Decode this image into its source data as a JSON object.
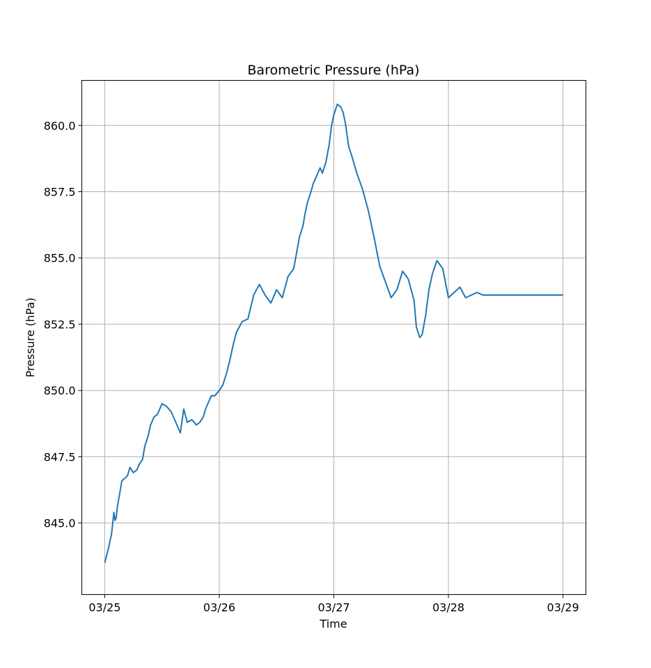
{
  "chart_data": {
    "type": "line",
    "title": "Barometric Pressure (hPa)",
    "xlabel": "Time",
    "ylabel": "Pressure (hPa)",
    "x_ticks": [
      "03/25",
      "03/26",
      "03/27",
      "03/28",
      "03/29"
    ],
    "y_ticks": [
      "845.0",
      "847.5",
      "850.0",
      "852.5",
      "855.0",
      "857.5",
      "860.0"
    ],
    "xlim_days": [
      -0.2,
      4.2
    ],
    "ylim": [
      842.3,
      861.7
    ],
    "grid": true,
    "line_color": "#1f77b4",
    "series": [
      {
        "x": [
          0.0,
          0.03,
          0.06,
          0.08,
          0.09,
          0.1,
          0.11,
          0.13,
          0.15,
          0.18,
          0.2,
          0.22,
          0.25,
          0.28,
          0.3,
          0.33,
          0.35,
          0.38,
          0.4,
          0.43,
          0.46,
          0.5,
          0.54,
          0.58,
          0.62,
          0.66,
          0.69,
          0.72,
          0.76,
          0.8,
          0.83,
          0.86,
          0.88,
          0.9,
          0.93,
          0.96,
          1.0,
          1.03,
          1.06,
          1.09,
          1.12,
          1.15,
          1.2,
          1.25,
          1.3,
          1.35,
          1.4,
          1.45,
          1.5,
          1.55,
          1.6,
          1.65,
          1.7,
          1.73,
          1.75,
          1.77,
          1.8,
          1.82,
          1.85,
          1.88,
          1.9,
          1.93,
          1.96,
          1.98,
          2.0,
          2.03,
          2.06,
          2.08,
          2.1,
          2.13,
          2.16,
          2.2,
          2.25,
          2.3,
          2.35,
          2.4,
          2.45,
          2.5,
          2.55,
          2.6,
          2.65,
          2.7,
          2.72,
          2.75,
          2.77,
          2.8,
          2.83,
          2.86,
          2.9,
          2.95,
          3.0,
          3.05,
          3.1,
          3.15,
          3.2,
          3.25,
          3.3,
          3.35,
          3.4,
          3.45,
          3.5,
          3.53,
          3.55,
          3.58,
          3.6,
          3.62,
          3.65,
          3.68,
          3.7,
          3.73,
          3.76,
          3.78,
          3.8,
          3.83,
          3.86,
          3.88,
          3.9,
          3.92,
          3.95,
          3.98,
          4.0
        ],
        "y": [
          843.5,
          844.0,
          844.6,
          845.4,
          845.1,
          845.2,
          845.6,
          846.1,
          846.6,
          846.7,
          846.8,
          847.1,
          846.9,
          847.0,
          847.2,
          847.4,
          847.9,
          848.3,
          848.7,
          849.0,
          849.1,
          849.5,
          849.4,
          849.2,
          848.8,
          848.4,
          849.3,
          848.8,
          848.9,
          848.7,
          848.8,
          849.0,
          849.3,
          849.5,
          849.8,
          849.8,
          850.0,
          850.2,
          850.6,
          851.1,
          851.7,
          852.2,
          852.6,
          852.7,
          853.6,
          854.0,
          853.6,
          853.3,
          853.8,
          853.5,
          854.3,
          854.6,
          855.8,
          856.2,
          856.7,
          857.1,
          857.5,
          857.8,
          858.1,
          858.4,
          858.2,
          858.6,
          859.3,
          860.0,
          860.4,
          860.8,
          860.7,
          860.5,
          860.1,
          859.2,
          858.8,
          858.2,
          857.6,
          856.8,
          855.8,
          854.7,
          854.1,
          853.5,
          853.8,
          854.5,
          854.2,
          853.4,
          852.4,
          852.0,
          852.1,
          852.8,
          853.8,
          854.4,
          854.9,
          854.6,
          853.5,
          853.7,
          853.9,
          853.5,
          853.6,
          853.7,
          853.6,
          853.6,
          853.6,
          853.6,
          853.6,
          853.6,
          853.6,
          853.6,
          853.6,
          853.6,
          853.6,
          853.6,
          853.6,
          853.6,
          853.6,
          853.6,
          853.6,
          853.6,
          853.6,
          853.6,
          853.6,
          853.6,
          853.6,
          853.6,
          853.6
        ]
      }
    ]
  }
}
